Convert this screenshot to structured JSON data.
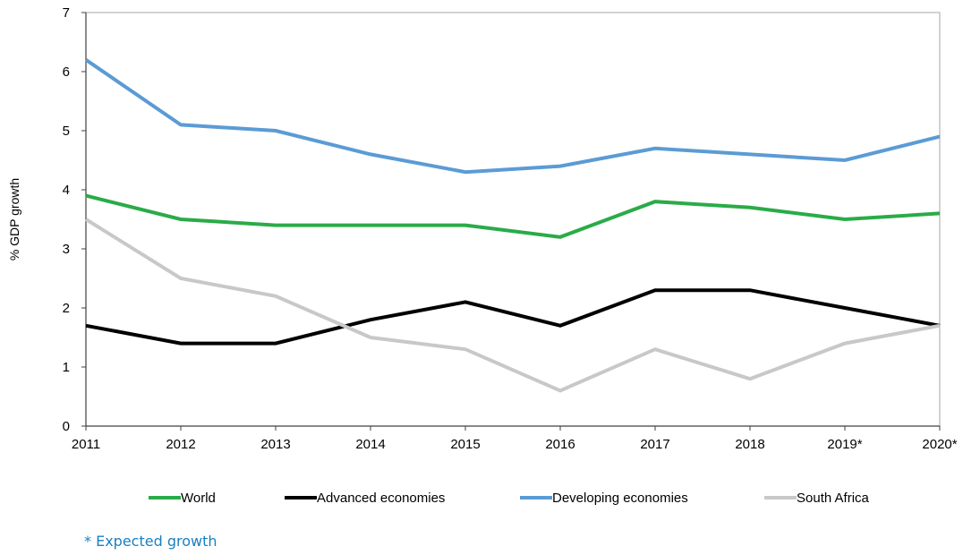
{
  "chart_data": {
    "type": "line",
    "title": "",
    "xlabel": "",
    "ylabel": "% GDP growth",
    "ylim": [
      0,
      7
    ],
    "yticks": [
      0,
      1,
      2,
      3,
      4,
      5,
      6,
      7
    ],
    "grid": false,
    "legend_position": "bottom",
    "categories": [
      "2011",
      "2012",
      "2013",
      "2014",
      "2015",
      "2016",
      "2017",
      "2018",
      "2019*",
      "2020*"
    ],
    "series": [
      {
        "name": "World",
        "color": "#2aab48",
        "values": [
          3.9,
          3.5,
          3.4,
          3.4,
          3.4,
          3.2,
          3.8,
          3.7,
          3.5,
          3.6
        ]
      },
      {
        "name": "Advanced economies",
        "color": "#000000",
        "values": [
          1.7,
          1.4,
          1.4,
          1.8,
          2.1,
          1.7,
          2.3,
          2.3,
          2.0,
          1.7
        ]
      },
      {
        "name": "Developing economies",
        "color": "#5b9bd5",
        "values": [
          6.2,
          5.1,
          5.0,
          4.6,
          4.3,
          4.4,
          4.7,
          4.6,
          4.5,
          4.9
        ]
      },
      {
        "name": "South Africa",
        "color": "#c8c8c8",
        "values": [
          3.5,
          2.5,
          2.2,
          1.5,
          1.3,
          0.6,
          1.3,
          0.8,
          1.4,
          1.7
        ]
      }
    ]
  },
  "footnote": {
    "text": "* Expected growth",
    "color": "#1a7fc1"
  }
}
